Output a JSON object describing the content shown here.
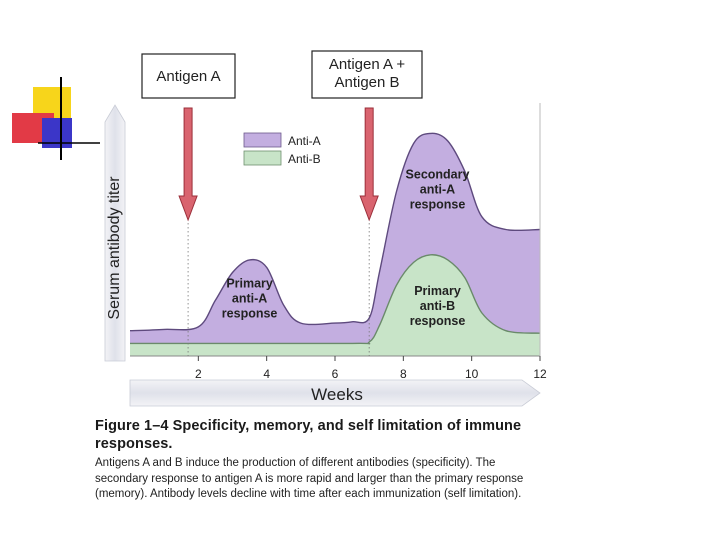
{
  "figure": {
    "caption_title": "Figure 1–4  Specificity, memory, and self limitation of immune responses.",
    "caption_body": "Antigens A and B induce the production of different antibodies (specificity). The secondary response to antigen A is more rapid and larger than the primary response (memory). Antibody levels decline with time after each immunization (self limitation)."
  },
  "colors": {
    "anti_a": "#c3aee0",
    "anti_b": "#c8e4c8",
    "arrow": "#d9646f",
    "plot_bg": "#ffffff",
    "axis_band": "#e6e8f0",
    "accent_yellow": "#f7d51b",
    "accent_red": "#e23a46",
    "accent_blue": "#3b36c8"
  },
  "chart_data": {
    "type": "area",
    "xlabel": "Weeks",
    "ylabel": "Serum antibody titer",
    "xlim": [
      0,
      12
    ],
    "ylim": [
      0,
      1
    ],
    "xticks": [
      2,
      4,
      6,
      8,
      10,
      12
    ],
    "legend": {
      "position": "top-center",
      "entries": [
        "Anti-A",
        "Anti-B"
      ]
    },
    "series": [
      {
        "name": "Anti-A",
        "x": [
          0,
          1,
          2,
          2.5,
          3,
          3.5,
          4,
          4.5,
          5,
          6,
          6.5,
          7,
          7.3,
          7.8,
          8.3,
          8.8,
          9.3,
          9.8,
          10.3,
          11,
          12
        ],
        "y": [
          0.1,
          0.105,
          0.115,
          0.22,
          0.33,
          0.38,
          0.35,
          0.2,
          0.13,
          0.13,
          0.135,
          0.15,
          0.33,
          0.65,
          0.84,
          0.88,
          0.85,
          0.73,
          0.55,
          0.5,
          0.5
        ]
      },
      {
        "name": "Anti-B",
        "x": [
          0,
          2,
          6.5,
          7,
          7.3,
          7.8,
          8.3,
          8.8,
          9.3,
          9.8,
          10.3,
          11,
          12
        ],
        "y": [
          0.05,
          0.05,
          0.05,
          0.055,
          0.12,
          0.28,
          0.37,
          0.4,
          0.38,
          0.31,
          0.17,
          0.1,
          0.09
        ]
      }
    ],
    "antigen_events": [
      {
        "label": "Antigen A",
        "week": 1.7
      },
      {
        "label": "Antigen A + Antigen B",
        "week": 7.0
      }
    ],
    "annotations": [
      {
        "text": "Primary anti-A response",
        "x": 3.5,
        "y": 0.2
      },
      {
        "text": "Secondary anti-A response",
        "x": 9.0,
        "y": 0.63
      },
      {
        "text": "Primary anti-B response",
        "x": 9.0,
        "y": 0.17
      }
    ]
  }
}
